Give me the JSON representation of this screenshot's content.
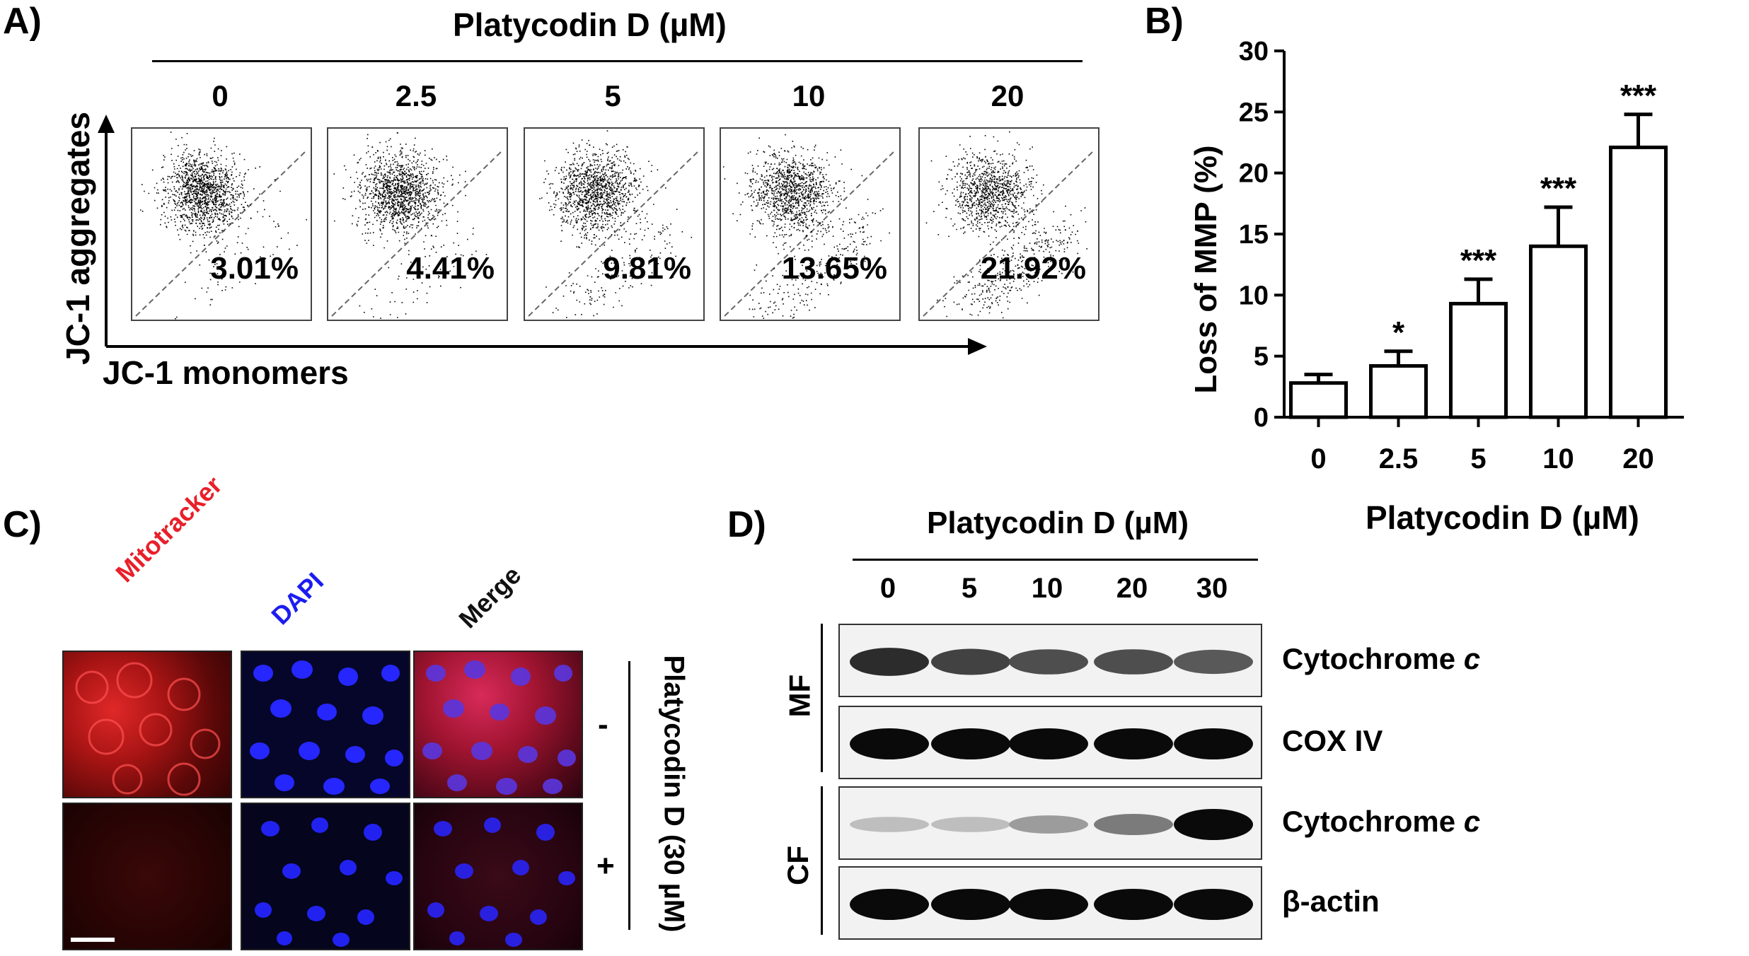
{
  "panelA": {
    "letter": "A)",
    "title": "Platycodin D (µM)",
    "y_label": "JC-1 aggregates",
    "x_label": "JC-1 monomers",
    "plots": [
      {
        "conc": "0",
        "pct": "3.01%",
        "pct_value": 3.01
      },
      {
        "conc": "2.5",
        "pct": "4.41%",
        "pct_value": 4.41
      },
      {
        "conc": "5",
        "pct": "9.81%",
        "pct_value": 9.81
      },
      {
        "conc": "10",
        "pct": "13.65%",
        "pct_value": 13.65
      },
      {
        "conc": "20",
        "pct": "21.92%",
        "pct_value": 21.92
      }
    ]
  },
  "panelB": {
    "letter": "B)",
    "chart_data": {
      "type": "bar",
      "categories": [
        "0",
        "2.5",
        "5",
        "10",
        "20"
      ],
      "values": [
        2.8,
        4.2,
        9.3,
        14.0,
        22.1
      ],
      "errors": [
        0.7,
        1.2,
        2.0,
        3.2,
        2.7
      ],
      "significance": [
        "",
        "*",
        "***",
        "***",
        "***"
      ],
      "xlabel": "Platycodin D (µM)",
      "ylabel": "Loss of MMP (%)",
      "ylim": [
        0,
        30
      ],
      "yticks": [
        "0",
        "5",
        "10",
        "15",
        "20",
        "25",
        "30"
      ],
      "grid": false
    }
  },
  "panelC": {
    "letter": "C)",
    "columns": [
      "Mitotracker",
      "DAPI",
      "Merge"
    ],
    "column_colors": [
      "#e8202a",
      "#1c1cf0",
      "#111111"
    ],
    "treatment_label": "Platycodin D (30 µM)",
    "rows": [
      "-",
      "+"
    ]
  },
  "panelD": {
    "letter": "D)",
    "title": "Platycodin D (µM)",
    "lanes": [
      "0",
      "5",
      "10",
      "20",
      "30"
    ],
    "fractions": [
      "MF",
      "CF"
    ],
    "blots": [
      {
        "label_main": "Cytochrome ",
        "label_italic": "c",
        "intensity": [
          0.85,
          0.75,
          0.7,
          0.7,
          0.65
        ]
      },
      {
        "label_main": "COX IV",
        "label_italic": "",
        "intensity": [
          1,
          1,
          1,
          1,
          1
        ]
      },
      {
        "label_main": "Cytochrome ",
        "label_italic": "c",
        "intensity": [
          0.2,
          0.2,
          0.35,
          0.5,
          1
        ]
      },
      {
        "label_main": "β-actin",
        "label_italic": "",
        "intensity": [
          1,
          1,
          1,
          1,
          1
        ]
      }
    ]
  }
}
